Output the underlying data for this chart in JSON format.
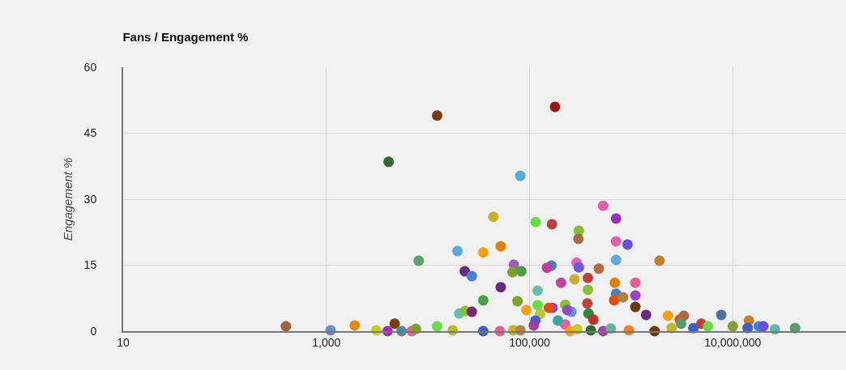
{
  "chart_data": {
    "type": "scatter",
    "title": "Fans / Engagement %",
    "ylabel": "Engagement %",
    "x": [
      400,
      1100,
      1900,
      3100,
      4000,
      4700,
      5500,
      6900,
      7600,
      4100,
      8100,
      12300,
      12300,
      17500,
      19500,
      20300,
      23000,
      27000,
      23300,
      27000,
      35000,
      35000,
      35000,
      44000,
      52000,
      51000,
      52000,
      70000,
      68000,
      83000,
      76000,
      69000,
      81000,
      81000,
      93000,
      115000,
      120000,
      120000,
      127000,
      114000,
      110000,
      166000,
      178000,
      164000,
      148000,
      204000,
      277000,
      224000,
      168000,
      155000,
      224000,
      258000,
      305000,
      302000,
      290000,
      305000,
      480000,
      375000,
      375000,
      370000,
      380000,
      425000,
      400000,
      530000,
      530000,
      710000,
      710000,
      920000,
      710000,
      690000,
      710000,
      680000,
      830000,
      1100000,
      1100000,
      1100000,
      1400000,
      1900000,
      2300000,
      2500000,
      3000000,
      3300000,
      3100000,
      1700000,
      4100000,
      4900000,
      5700000,
      7700000,
      10000000,
      14400000,
      18000000,
      20000000,
      26000000,
      41000000,
      14000000,
      250000,
      295000,
      190000,
      235000,
      630000,
      950000
    ],
    "values": [
      1.1,
      0.2,
      1.3,
      0.2,
      0,
      1.7,
      0,
      0,
      0.5,
      38.5,
      16,
      49,
      1.1,
      0.2,
      18.2,
      4,
      13.6,
      12.5,
      4.6,
      4.4,
      17.9,
      7,
      0,
      26,
      19.3,
      0,
      10,
      15.1,
      13.4,
      13.6,
      6.8,
      0.2,
      0.2,
      35.3,
      4.8,
      24.8,
      9.2,
      5.9,
      3.9,
      2.4,
      1.3,
      24.3,
      51,
      14.9,
      14.4,
      11,
      11.8,
      6,
      5.3,
      5.3,
      1.5,
      4.4,
      22.8,
      21,
      15.6,
      14.5,
      14.2,
      12.1,
      9.4,
      6.3,
      4,
      2.6,
      0.2,
      28.5,
      0,
      25.6,
      20.4,
      19.7,
      16.2,
      11,
      8.5,
      7,
      7.7,
      11,
      8.1,
      5.5,
      3.7,
      16,
      3.5,
      0.7,
      2.6,
      3.5,
      1.7,
      0,
      0.7,
      1.7,
      1.1,
      3.7,
      1.1,
      2.4,
      1.1,
      1.1,
      0.4,
      0.7,
      0.7,
      0,
      0.4,
      2.4,
      4.8,
      0.6,
      0.2
    ],
    "colors": [
      "#a0643c",
      "#6a8cbf",
      "#e08a0a",
      "#c8c830",
      "#9b30b0",
      "#7a3c10",
      "#4a8ca0",
      "#e060a0",
      "#7aa030",
      "#2d6a2d",
      "#5aa070",
      "#7a3c10",
      "#66dd44",
      "#b8b830",
      "#5aaad8",
      "#66c0b0",
      "#6a2a80",
      "#4a80d8",
      "#88c030",
      "#7a2a70",
      "#f5a010",
      "#4aa040",
      "#4060c0",
      "#c8b030",
      "#e08010",
      "#e06090",
      "#6a2a80",
      "#9a60b0",
      "#80a030",
      "#4aa040",
      "#80a030",
      "#c8b030",
      "#b88040",
      "#5aaad8",
      "#f5a010",
      "#66dd44",
      "#6abfb0",
      "#66dd44",
      "#b8c830",
      "#4060d0",
      "#a040a0",
      "#b84040",
      "#9a1a10",
      "#4a80c0",
      "#c040a0",
      "#c040a0",
      "#c8b030",
      "#88c030",
      "#a040c0",
      "#e05010",
      "#e060a0",
      "#5a9ad8",
      "#88c030",
      "#a86a40",
      "#e060c0",
      "#6a5ad8",
      "#b86a40",
      "#c04040",
      "#88c030",
      "#c04040",
      "#2a8a40",
      "#c03030",
      "#2a6a2a",
      "#e060b0",
      "#a040a0",
      "#9a30b0",
      "#e060b0",
      "#6a50d8",
      "#60aad8",
      "#e08010",
      "#4a80c0",
      "#e05010",
      "#b08040",
      "#e06090",
      "#a040c0",
      "#6a3a10",
      "#6a2a80",
      "#c08030",
      "#f5a010",
      "#c0b830",
      "#e05010",
      "#a86a40",
      "#5a9a70",
      "#6a3a10",
      "#4060c0",
      "#c04040",
      "#66dd44",
      "#4a70a0",
      "#80a030",
      "#c08030",
      "#4a80d8",
      "#6a50d8",
      "#60b8a8",
      "#5a9a70",
      "#4060c0",
      "#f5a010",
      "#c8c830",
      "#40a0a0",
      "#8a50c0",
      "#6ab0a0",
      "#f08030"
    ],
    "log": "x",
    "xlim": [
      10,
      130000000
    ],
    "xticks": [
      {
        "value": 10,
        "label": "10"
      },
      {
        "value": 1000,
        "label": "1,000"
      },
      {
        "value": 100000,
        "label": "100,000"
      },
      {
        "value": 10000000,
        "label": "10,000,000"
      }
    ],
    "ylim": [
      0,
      60
    ],
    "yticks": [
      0,
      15,
      30,
      45,
      60
    ],
    "grid": true,
    "marker": "circle"
  }
}
